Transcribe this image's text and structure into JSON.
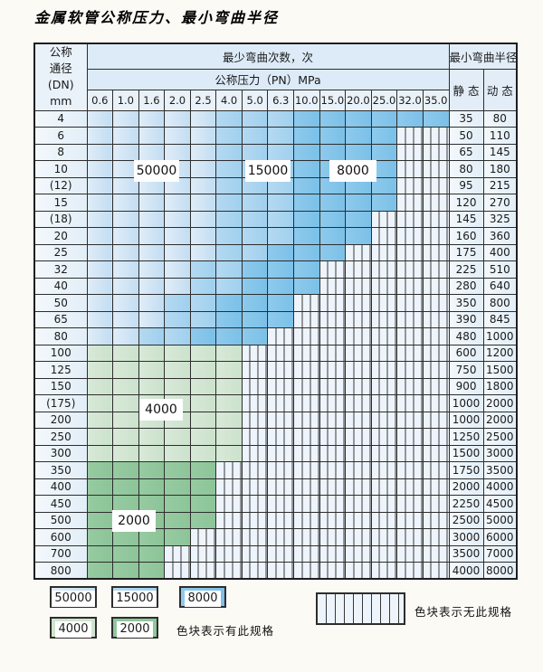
{
  "title": "金属软管公称压力、最小弯曲半径",
  "header": {
    "dn_lines": [
      "公称",
      "通径",
      "(DN)",
      "mm"
    ],
    "bend_cycles": "最少弯曲次数，次",
    "pressure_band": "公称压力（PN）MPa",
    "min_bend_radius": "最小弯曲半径",
    "static_label": "静 态",
    "dynamic_label": "动 态"
  },
  "legend": {
    "items": [
      {
        "label": "50000",
        "zone": "50000",
        "color": "#c2ddf2"
      },
      {
        "label": "15000",
        "zone": "15000",
        "color": "#9fd0ee"
      },
      {
        "label": "8000",
        "zone": "8000",
        "color": "#7bc0e8"
      },
      {
        "label": "4000",
        "zone": "4000",
        "color": "#cfe4cf"
      },
      {
        "label": "2000",
        "zone": "2000",
        "color": "#90c79b"
      }
    ],
    "available_note": "色块表示有此规格",
    "unavailable_note": "色块表示无此规格"
  },
  "chart_data": {
    "type": "table",
    "title": "金属软管公称压力、最小弯曲半径",
    "pressure_columns_mpa": [
      "0.6",
      "1.0",
      "1.6",
      "2.0",
      "2.5",
      "4.0",
      "5.0",
      "6.3",
      "10.0",
      "15.0",
      "20.0",
      "25.0",
      "32.0",
      "35.0"
    ],
    "cycle_zone_colors": {
      "50000": "#c2ddf2",
      "15000": "#9fd0ee",
      "8000": "#7bc0e8",
      "4000": "#cfe4cf",
      "2000": "#90c79b"
    },
    "note": "colored cell = spec exists (color encodes minimum bend cycles); hatched cell = no spec",
    "rows": [
      {
        "dn": "4",
        "static": "35",
        "dynamic": "80",
        "max_pn": "35.0",
        "cycles_by_pn": {
          "50000": [
            1,
            5
          ],
          "15000": [
            6,
            8
          ],
          "8000": [
            9,
            14
          ]
        }
      },
      {
        "dn": "6",
        "static": "50",
        "dynamic": "110",
        "max_pn": "25.0",
        "cycles_by_pn": {
          "50000": [
            1,
            5
          ],
          "15000": [
            6,
            8
          ],
          "8000": [
            9,
            12
          ]
        }
      },
      {
        "dn": "8",
        "static": "65",
        "dynamic": "145",
        "max_pn": "25.0",
        "cycles_by_pn": {
          "50000": [
            1,
            5
          ],
          "15000": [
            6,
            8
          ],
          "8000": [
            9,
            12
          ]
        }
      },
      {
        "dn": "10",
        "static": "80",
        "dynamic": "180",
        "max_pn": "25.0",
        "cycles_by_pn": {
          "50000": [
            1,
            5
          ],
          "15000": [
            6,
            8
          ],
          "8000": [
            9,
            12
          ]
        }
      },
      {
        "dn": "(12)",
        "static": "95",
        "dynamic": "215",
        "max_pn": "25.0",
        "cycles_by_pn": {
          "50000": [
            1,
            5
          ],
          "15000": [
            6,
            8
          ],
          "8000": [
            9,
            12
          ]
        }
      },
      {
        "dn": "15",
        "static": "120",
        "dynamic": "270",
        "max_pn": "25.0",
        "cycles_by_pn": {
          "50000": [
            1,
            5
          ],
          "15000": [
            6,
            8
          ],
          "8000": [
            9,
            12
          ]
        }
      },
      {
        "dn": "(18)",
        "static": "145",
        "dynamic": "325",
        "max_pn": "20.0",
        "cycles_by_pn": {
          "50000": [
            1,
            5
          ],
          "15000": [
            6,
            8
          ],
          "8000": [
            9,
            11
          ]
        }
      },
      {
        "dn": "20",
        "static": "160",
        "dynamic": "360",
        "max_pn": "20.0",
        "cycles_by_pn": {
          "50000": [
            1,
            5
          ],
          "15000": [
            6,
            8
          ],
          "8000": [
            9,
            11
          ]
        }
      },
      {
        "dn": "25",
        "static": "175",
        "dynamic": "400",
        "max_pn": "15.0",
        "cycles_by_pn": {
          "50000": [
            1,
            5
          ],
          "15000": [
            6,
            7
          ],
          "8000": [
            8,
            10
          ]
        }
      },
      {
        "dn": "32",
        "static": "225",
        "dynamic": "510",
        "max_pn": "10.0",
        "cycles_by_pn": {
          "50000": [
            1,
            4
          ],
          "15000": [
            5,
            6
          ],
          "8000": [
            7,
            9
          ]
        }
      },
      {
        "dn": "40",
        "static": "280",
        "dynamic": "640",
        "max_pn": "10.0",
        "cycles_by_pn": {
          "50000": [
            1,
            4
          ],
          "15000": [
            5,
            6
          ],
          "8000": [
            7,
            9
          ]
        }
      },
      {
        "dn": "50",
        "static": "350",
        "dynamic": "800",
        "max_pn": "6.3",
        "cycles_by_pn": {
          "50000": [
            1,
            3
          ],
          "15000": [
            4,
            5
          ],
          "8000": [
            6,
            8
          ]
        }
      },
      {
        "dn": "65",
        "static": "390",
        "dynamic": "845",
        "max_pn": "6.3",
        "cycles_by_pn": {
          "50000": [
            1,
            3
          ],
          "15000": [
            4,
            5
          ],
          "8000": [
            6,
            8
          ]
        }
      },
      {
        "dn": "80",
        "static": "480",
        "dynamic": "1000",
        "max_pn": "5.0",
        "cycles_by_pn": {
          "50000": [
            1,
            2
          ],
          "15000": [
            3,
            4
          ],
          "8000": [
            5,
            7
          ]
        }
      },
      {
        "dn": "100",
        "static": "600",
        "dynamic": "1200",
        "max_pn": "4.0",
        "cycles_by_pn": {
          "4000": [
            1,
            6
          ]
        }
      },
      {
        "dn": "125",
        "static": "750",
        "dynamic": "1500",
        "max_pn": "4.0",
        "cycles_by_pn": {
          "4000": [
            1,
            6
          ]
        }
      },
      {
        "dn": "150",
        "static": "900",
        "dynamic": "1800",
        "max_pn": "4.0",
        "cycles_by_pn": {
          "4000": [
            1,
            6
          ]
        }
      },
      {
        "dn": "(175)",
        "static": "1000",
        "dynamic": "2000",
        "max_pn": "4.0",
        "cycles_by_pn": {
          "4000": [
            1,
            6
          ]
        }
      },
      {
        "dn": "200",
        "static": "1000",
        "dynamic": "2000",
        "max_pn": "4.0",
        "cycles_by_pn": {
          "4000": [
            1,
            6
          ]
        }
      },
      {
        "dn": "250",
        "static": "1250",
        "dynamic": "2500",
        "max_pn": "4.0",
        "cycles_by_pn": {
          "4000": [
            1,
            6
          ]
        }
      },
      {
        "dn": "300",
        "static": "1500",
        "dynamic": "3000",
        "max_pn": "4.0",
        "cycles_by_pn": {
          "4000": [
            1,
            6
          ]
        }
      },
      {
        "dn": "350",
        "static": "1750",
        "dynamic": "3500",
        "max_pn": "2.5",
        "cycles_by_pn": {
          "2000": [
            1,
            5
          ]
        }
      },
      {
        "dn": "400",
        "static": "2000",
        "dynamic": "4000",
        "max_pn": "2.5",
        "cycles_by_pn": {
          "2000": [
            1,
            5
          ]
        }
      },
      {
        "dn": "450",
        "static": "2250",
        "dynamic": "4500",
        "max_pn": "2.5",
        "cycles_by_pn": {
          "2000": [
            1,
            5
          ]
        }
      },
      {
        "dn": "500",
        "static": "2500",
        "dynamic": "5000",
        "max_pn": "2.5",
        "cycles_by_pn": {
          "2000": [
            1,
            5
          ]
        }
      },
      {
        "dn": "600",
        "static": "3000",
        "dynamic": "6000",
        "max_pn": "2.0",
        "cycles_by_pn": {
          "2000": [
            1,
            4
          ]
        }
      },
      {
        "dn": "700",
        "static": "3500",
        "dynamic": "7000",
        "max_pn": "1.6",
        "cycles_by_pn": {
          "2000": [
            1,
            3
          ]
        }
      },
      {
        "dn": "800",
        "static": "4000",
        "dynamic": "8000",
        "max_pn": "1.6",
        "cycles_by_pn": {
          "2000": [
            1,
            3
          ]
        }
      }
    ]
  }
}
